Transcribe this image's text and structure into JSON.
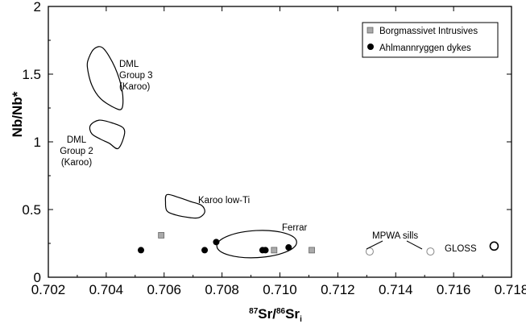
{
  "chart_data": {
    "type": "scatter",
    "xlabel": {
      "base": "Sr/",
      "sup1": "87",
      "sup2": "86",
      "base2": "Sr",
      "sub": "i"
    },
    "ylabel": "Nb/Nb*",
    "xlim": [
      0.702,
      0.718
    ],
    "ylim": [
      0,
      2
    ],
    "x_ticks": [
      "0.702",
      "0.704",
      "0.706",
      "0.708",
      "0.710",
      "0.712",
      "0.714",
      "0.716",
      "0.718"
    ],
    "y_ticks": [
      "0",
      "0.5",
      "1",
      "1.5",
      "2"
    ],
    "legend_position": "top-right",
    "series": [
      {
        "name": "Borgmassivet Intrusives",
        "marker": "square",
        "color": "#aaaaaa",
        "points": [
          {
            "x": 0.7059,
            "y": 0.31
          },
          {
            "x": 0.7098,
            "y": 0.2
          },
          {
            "x": 0.7111,
            "y": 0.2
          }
        ]
      },
      {
        "name": "Ahlmannryggen dykes",
        "marker": "circle",
        "color": "#000000",
        "points": [
          {
            "x": 0.7052,
            "y": 0.2
          },
          {
            "x": 0.7074,
            "y": 0.2
          },
          {
            "x": 0.7078,
            "y": 0.26
          },
          {
            "x": 0.7094,
            "y": 0.2
          },
          {
            "x": 0.7095,
            "y": 0.2
          },
          {
            "x": 0.7103,
            "y": 0.22
          }
        ]
      }
    ],
    "open_points": [
      {
        "x": 0.7131,
        "y": 0.19
      },
      {
        "x": 0.7152,
        "y": 0.19
      },
      {
        "x": 0.7174,
        "y": 0.23
      }
    ],
    "fields": [
      {
        "label_lines": [
          "DML",
          "Group 3",
          "(Karoo)"
        ],
        "outline": [
          [
            0.7034,
            1.62
          ],
          [
            0.7036,
            1.69
          ],
          [
            0.7039,
            1.69
          ],
          [
            0.7043,
            1.55
          ],
          [
            0.70455,
            1.38
          ],
          [
            0.70455,
            1.25
          ],
          [
            0.7043,
            1.25
          ],
          [
            0.7038,
            1.32
          ],
          [
            0.7035,
            1.42
          ],
          [
            0.70335,
            1.55
          ]
        ]
      },
      {
        "label_lines": [
          "DML",
          "Group 2",
          "(Karoo)"
        ],
        "outline": [
          [
            0.70345,
            1.12
          ],
          [
            0.70375,
            1.16
          ],
          [
            0.7042,
            1.14
          ],
          [
            0.7046,
            1.1
          ],
          [
            0.7046,
            1.03
          ],
          [
            0.7044,
            0.95
          ],
          [
            0.7041,
            0.99
          ],
          [
            0.7038,
            1.02
          ],
          [
            0.7035,
            1.06
          ]
        ]
      },
      {
        "label_lines": [
          "Karoo low-Ti"
        ],
        "outline": [
          [
            0.7061,
            0.61
          ],
          [
            0.7065,
            0.59
          ],
          [
            0.7069,
            0.56
          ],
          [
            0.7073,
            0.53
          ],
          [
            0.7074,
            0.48
          ],
          [
            0.7072,
            0.44
          ],
          [
            0.7069,
            0.44
          ],
          [
            0.7064,
            0.46
          ],
          [
            0.7061,
            0.49
          ],
          [
            0.70605,
            0.55
          ]
        ]
      }
    ],
    "ellipse": {
      "label": "Ferrar",
      "cx": 0.7092,
      "cy": 0.245,
      "rx": 0.00138,
      "ry": 0.1
    },
    "annotations": {
      "mpwa": "MPWA sills",
      "gloss": "GLOSS"
    }
  }
}
